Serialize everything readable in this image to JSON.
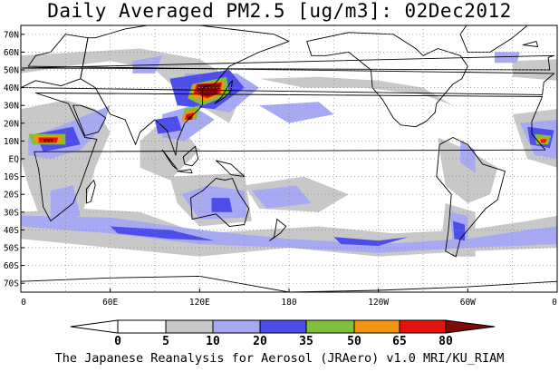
{
  "title": "Daily Averaged PM2.5 [ug/m3]: 02Dec2012",
  "credit": "The Japanese Reanalysis for Aerosol (JRAero) v1.0 MRI/KU_RIAM",
  "map": {
    "lon_range": [
      0,
      360
    ],
    "lat_range": [
      -75,
      75
    ],
    "lat_ticks": [
      {
        "v": 70,
        "label": "70N"
      },
      {
        "v": 60,
        "label": "60N"
      },
      {
        "v": 50,
        "label": "50N"
      },
      {
        "v": 40,
        "label": "40N"
      },
      {
        "v": 30,
        "label": "30N"
      },
      {
        "v": 20,
        "label": "20N"
      },
      {
        "v": 10,
        "label": "10N"
      },
      {
        "v": 0,
        "label": "EQ"
      },
      {
        "v": -10,
        "label": "10S"
      },
      {
        "v": -20,
        "label": "20S"
      },
      {
        "v": -30,
        "label": "30S"
      },
      {
        "v": -40,
        "label": "40S"
      },
      {
        "v": -50,
        "label": "50S"
      },
      {
        "v": -60,
        "label": "60S"
      },
      {
        "v": -70,
        "label": "70S"
      }
    ],
    "lon_ticks": [
      {
        "v": 0,
        "label": "0"
      },
      {
        "v": 60,
        "label": "60E"
      },
      {
        "v": 120,
        "label": "120E"
      },
      {
        "v": 180,
        "label": "180"
      },
      {
        "v": 240,
        "label": "120W"
      },
      {
        "v": 300,
        "label": "60W"
      },
      {
        "v": 360,
        "label": "0"
      }
    ],
    "grid": "dotted",
    "colors": {
      "5": "#c8c8c8",
      "10": "#a7a9f2",
      "20": "#4d4dea",
      "35": "#7ec03a",
      "50": "#f19410",
      "65": "#e3140f",
      "80": "#7e0b05",
      "coast": "#000000"
    }
  },
  "colorbar": {
    "levels": [
      0,
      5,
      10,
      20,
      35,
      50,
      65,
      80
    ],
    "labels": [
      "0",
      "5",
      "10",
      "20",
      "35",
      "50",
      "65",
      "80"
    ],
    "colors": [
      "#ffffff",
      "#ffffff",
      "#c8c8c8",
      "#a7a9f2",
      "#4d4dea",
      "#7ec03a",
      "#f19410",
      "#e3140f",
      "#7e0b05"
    ]
  }
}
